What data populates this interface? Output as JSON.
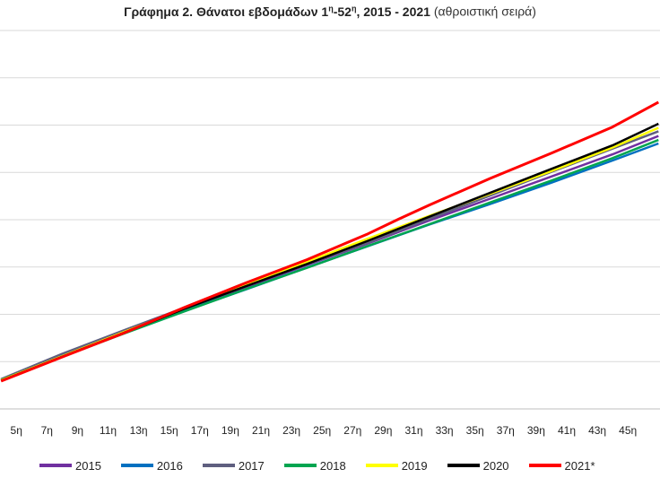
{
  "title": {
    "prefix": "Γράφημα 2. Θάνατοι εβδομάδων 1",
    "sup1": "η",
    "mid": "-52",
    "sup2": "η",
    "suffix": ", 2015 - 2021",
    "note": "(αθροιστική σειρά)"
  },
  "chart_data": {
    "type": "line",
    "title": "Γράφημα 2. Θάνατοι εβδομάδων 1η-52η, 2015 - 2021 (αθροιστική σειρά)",
    "xlabel": "",
    "ylabel": "",
    "x_tick_labels": [
      "5η",
      "7η",
      "9η",
      "11η",
      "13η",
      "15η",
      "17η",
      "19η",
      "21η",
      "23η",
      "25η",
      "27η",
      "29η",
      "31η",
      "33η",
      "35η",
      "37η",
      "39η",
      "41η",
      "43η",
      "45η"
    ],
    "x_tick_weeks": [
      5,
      7,
      9,
      11,
      13,
      15,
      17,
      19,
      21,
      23,
      25,
      27,
      29,
      31,
      33,
      35,
      37,
      39,
      41,
      43,
      45
    ],
    "x_range": [
      3.93,
      47.1
    ],
    "ylim": [
      0,
      140000
    ],
    "grid": true,
    "legend_position": "bottom",
    "series": [
      {
        "name": "2015",
        "color": "#7030a0",
        "x": [
          4,
          8,
          12,
          16,
          20,
          24,
          28,
          32,
          36,
          40,
          44,
          47
        ],
        "values": [
          10800,
          19900,
          28600,
          37100,
          45000,
          53200,
          61200,
          69700,
          77800,
          86000,
          94200,
          101000
        ]
      },
      {
        "name": "2016",
        "color": "#0070c0",
        "x": [
          4,
          8,
          12,
          16,
          20,
          24,
          28,
          32,
          36,
          40,
          44,
          47
        ],
        "values": [
          10800,
          19500,
          28000,
          36300,
          44200,
          52300,
          60200,
          68200,
          75800,
          83700,
          91900,
          98200
        ]
      },
      {
        "name": "2017",
        "color": "#5f5f7f",
        "x": [
          4,
          8,
          12,
          16,
          20,
          24,
          28,
          32,
          36,
          40,
          44,
          47
        ],
        "values": [
          11000,
          20400,
          29000,
          37500,
          45700,
          53500,
          61500,
          70300,
          79000,
          87700,
          96300,
          102700
        ]
      },
      {
        "name": "2018",
        "color": "#00a550",
        "x": [
          4,
          8,
          12,
          16,
          20,
          24,
          28,
          32,
          36,
          40,
          44,
          47
        ],
        "values": [
          10700,
          19300,
          27800,
          36100,
          44300,
          52200,
          60300,
          68300,
          76400,
          84500,
          92800,
          99500
        ]
      },
      {
        "name": "2019",
        "color": "#ffff00",
        "x": [
          4,
          8,
          12,
          16,
          20,
          24,
          28,
          32,
          36,
          40,
          44,
          47
        ],
        "values": [
          10600,
          19500,
          28400,
          37100,
          45700,
          54400,
          63000,
          71400,
          79600,
          88000,
          96700,
          104000
        ]
      },
      {
        "name": "2020",
        "color": "#000000",
        "x": [
          4,
          8,
          12,
          16,
          20,
          24,
          28,
          32,
          36,
          40,
          44,
          47
        ],
        "values": [
          10400,
          19300,
          28100,
          37100,
          45400,
          53600,
          62200,
          71100,
          80000,
          88800,
          97500,
          105500
        ]
      },
      {
        "name": "2021*",
        "color": "#ff0000",
        "x": [
          4,
          8,
          12,
          16,
          20,
          24,
          28,
          30,
          32,
          36,
          40,
          44,
          47
        ],
        "values": [
          10300,
          19200,
          28000,
          37600,
          46600,
          55200,
          64800,
          70200,
          75400,
          85300,
          94600,
          104300,
          113500
        ]
      }
    ]
  }
}
